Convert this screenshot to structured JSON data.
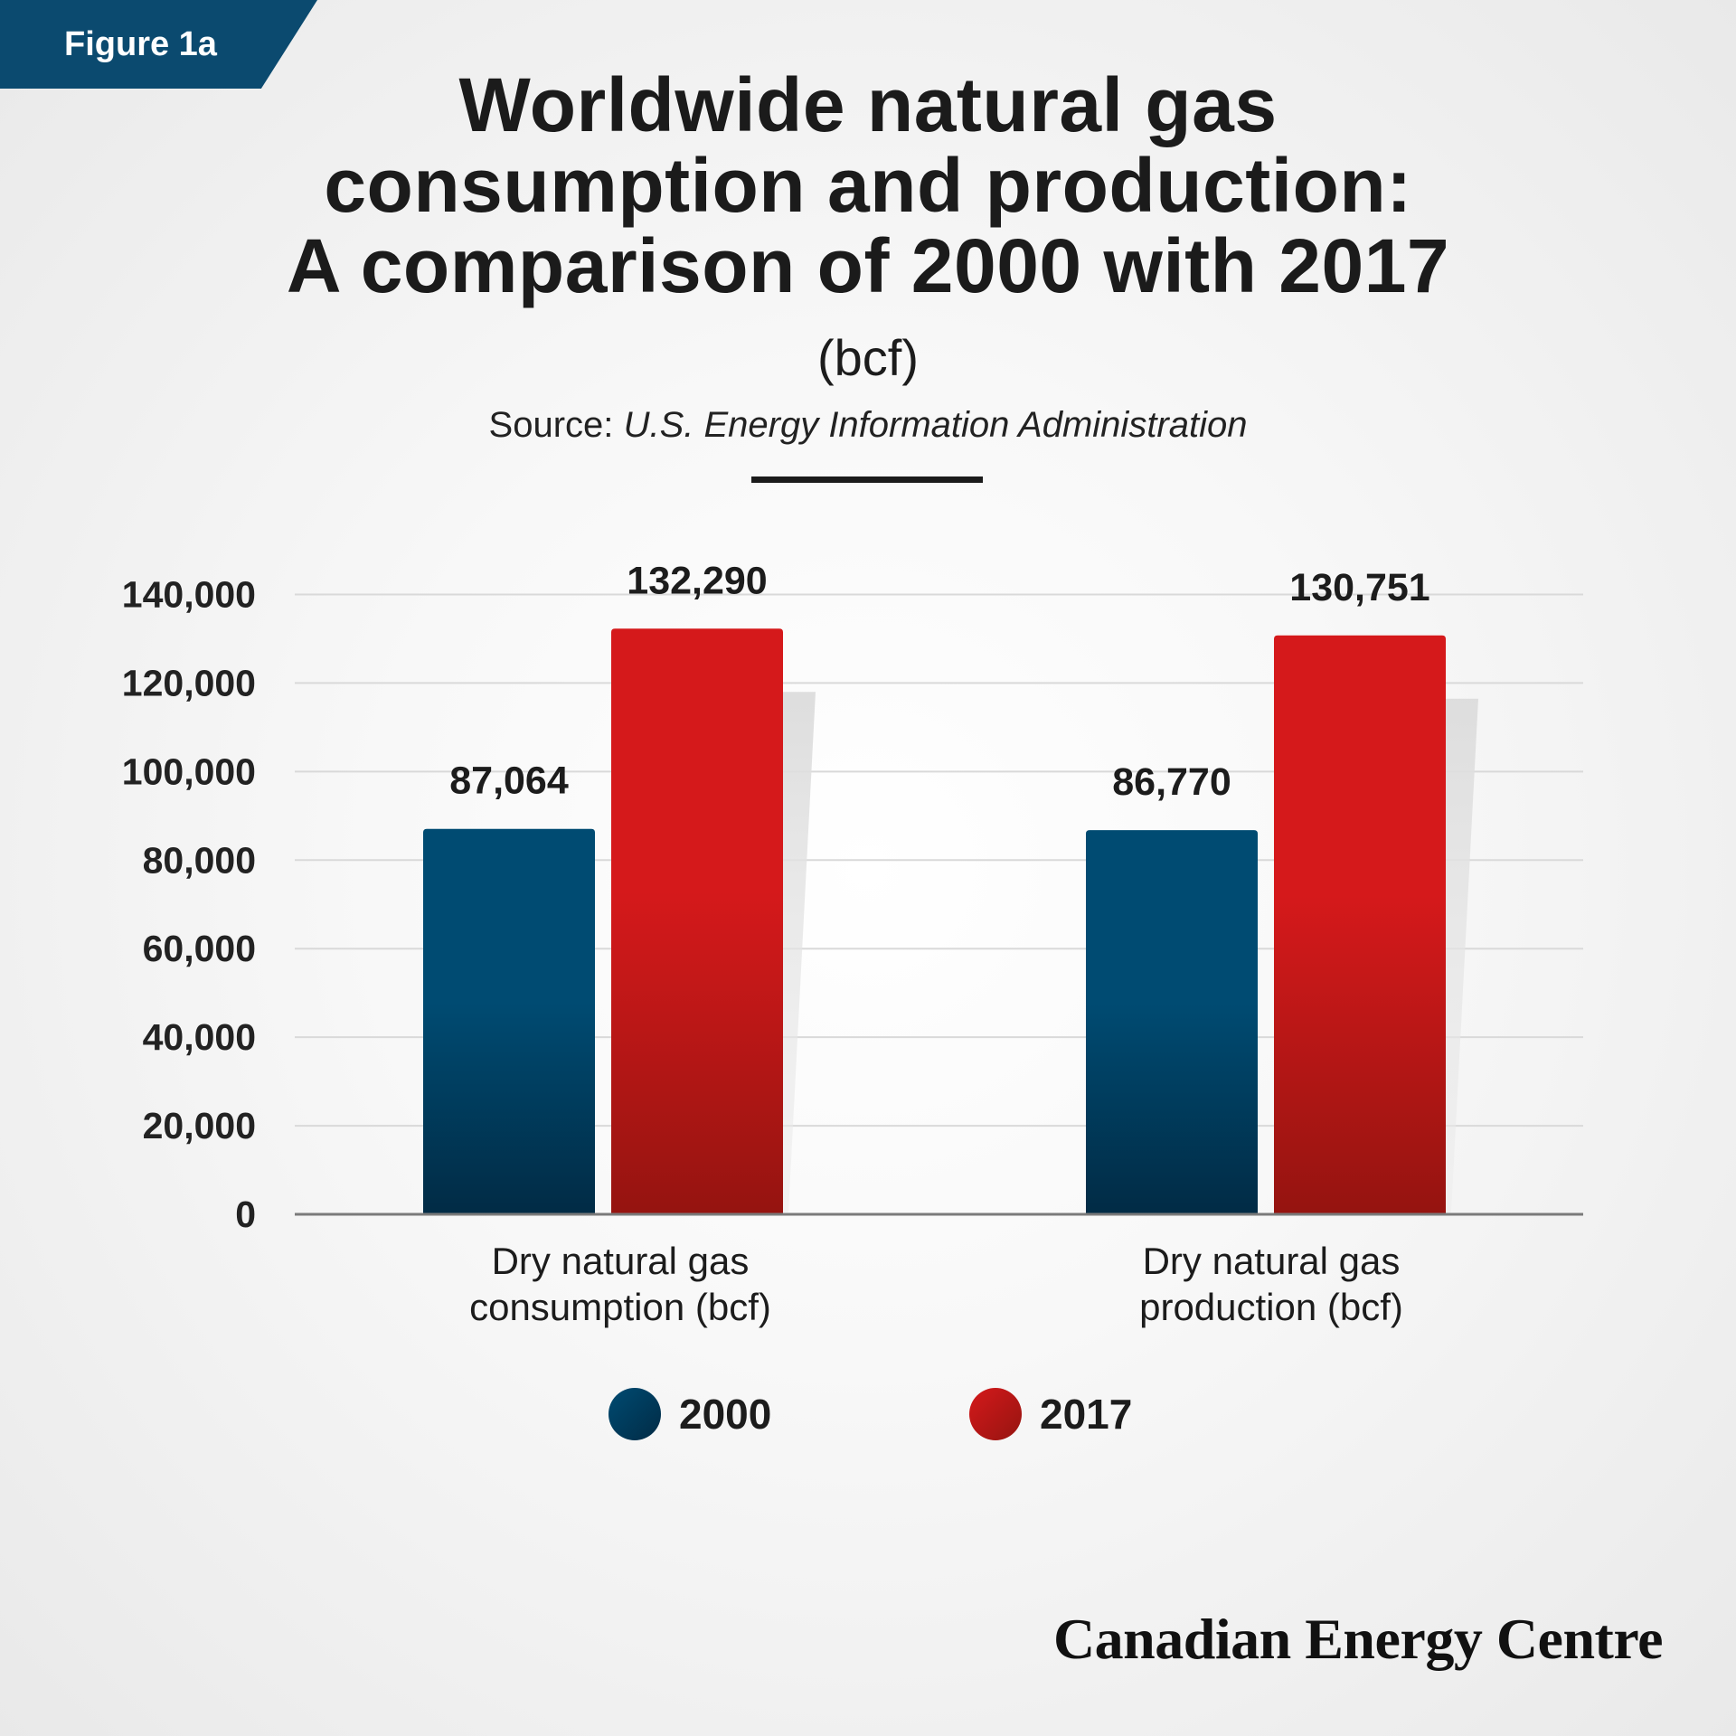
{
  "figure_label": "Figure 1a",
  "branding": {
    "name": "Canadian Energy Centre"
  },
  "colors": {
    "figure_label_bg": "#0b4a6f",
    "text_dark": "#1c1c1c",
    "gridline": "#d9d9d9",
    "axis_line": "#7a7a7a",
    "background_center": "#ffffff",
    "background_edge": "#e9e9e9"
  },
  "chart_data": {
    "type": "bar",
    "title": "Worldwide natural gas\nconsumption and production:\nA comparison of 2000 with 2017",
    "subtitle": "(bcf)",
    "source_label": "Source:",
    "source": "U.S. Energy Information Administration",
    "categories": [
      "Dry natural gas\nconsumption (bcf)",
      "Dry natural gas\nproduction (bcf)"
    ],
    "series": [
      {
        "name": "2000",
        "values": [
          87064,
          86770
        ],
        "color_top": "#004b72",
        "color_bottom": "#012b45"
      },
      {
        "name": "2017",
        "values": [
          132290,
          130751
        ],
        "color_top": "#d5191b",
        "color_bottom": "#951410"
      }
    ],
    "ylim": [
      0,
      140000
    ],
    "yticks": [
      0,
      20000,
      40000,
      60000,
      80000,
      100000,
      120000,
      140000
    ],
    "grid": true,
    "data_labels": true,
    "legend_position": "bottom-center"
  }
}
